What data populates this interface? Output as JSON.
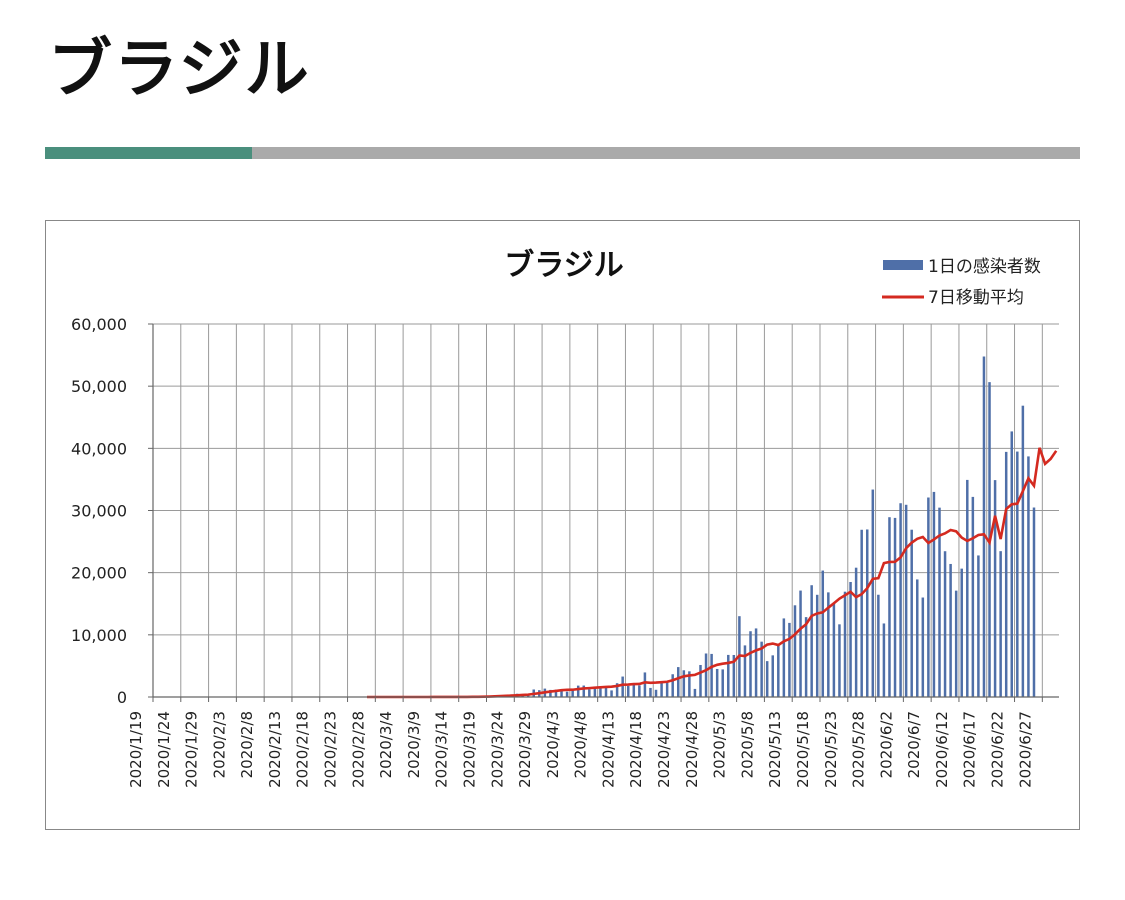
{
  "page": {
    "title": "ブラジル"
  },
  "colors": {
    "accent": "#4a8f7d",
    "rule": "#aaaaaa",
    "bar": "#4f6fa8",
    "line": "#d42a20"
  },
  "chart_data": {
    "type": "bar",
    "title": "ブラジル",
    "xlabel": "",
    "ylabel": "",
    "ylim": [
      0,
      60000
    ],
    "yticks": [
      0,
      10000,
      20000,
      30000,
      40000,
      50000,
      60000
    ],
    "ytick_labels": [
      "0",
      "10,000",
      "20,000",
      "30,000",
      "40,000",
      "50,000",
      "60,000"
    ],
    "x_start": "2020-01-19",
    "x_end": "2020-06-30",
    "xtick_labels": [
      "2020/1/19",
      "2020/1/24",
      "2020/1/29",
      "2020/2/3",
      "2020/2/8",
      "2020/2/13",
      "2020/2/18",
      "2020/2/23",
      "2020/2/28",
      "2020/3/4",
      "2020/3/9",
      "2020/3/14",
      "2020/3/19",
      "2020/3/24",
      "2020/3/29",
      "2020/4/3",
      "2020/4/8",
      "2020/4/13",
      "2020/4/18",
      "2020/4/23",
      "2020/4/28",
      "2020/5/3",
      "2020/5/8",
      "2020/5/13",
      "2020/5/18",
      "2020/5/23",
      "2020/5/28",
      "2020/6/2",
      "2020/6/7",
      "2020/6/12",
      "2020/6/17",
      "2020/6/22",
      "2020/6/27"
    ],
    "grid": true,
    "legend_position": "top-right",
    "series": [
      {
        "name": "1日の感染者数",
        "type": "bar",
        "start": "2020-02-26",
        "values": [
          1,
          0,
          0,
          0,
          1,
          0,
          0,
          0,
          0,
          0,
          6,
          4,
          6,
          13,
          5,
          2,
          29,
          27,
          36,
          77,
          84,
          130,
          193,
          297,
          291,
          337,
          411,
          527,
          480,
          476,
          1210,
          1100,
          1350,
          1140,
          1180,
          1220,
          860,
          1250,
          1830,
          1840,
          1220,
          1620,
          1700,
          1700,
          1060,
          2220,
          3290,
          1780,
          2010,
          1870,
          3950,
          1460,
          1160,
          2450,
          2500,
          3660,
          4810,
          4300,
          4130,
          1300,
          5150,
          7000,
          6930,
          4510,
          4440,
          6770,
          6760,
          13000,
          8300,
          10580,
          11030,
          8900,
          5770,
          6700,
          8400,
          12640,
          11920,
          14750,
          17120,
          12850,
          17980,
          16440,
          20340,
          16830,
          15150,
          11690,
          16940,
          18500,
          20800,
          26900,
          26950,
          33370,
          16450,
          11830,
          28920,
          28810,
          31170,
          30920,
          26910,
          18910,
          16000,
          32090,
          32990,
          30460,
          23450,
          21400,
          17110,
          20650,
          34920,
          32190,
          22770,
          54770,
          50650,
          34890,
          23460,
          39430,
          42720,
          39480,
          46860,
          38700,
          30480
        ],
        "label": "1日の感染者数"
      },
      {
        "name": "7日移動平均",
        "type": "line",
        "start": "2020-02-26",
        "values": [
          0,
          0,
          0,
          0,
          0,
          0,
          0,
          0,
          0,
          1,
          2,
          2,
          4,
          5,
          5,
          5,
          9,
          12,
          16,
          25,
          35,
          52,
          78,
          110,
          145,
          185,
          230,
          280,
          330,
          380,
          500,
          620,
          750,
          870,
          980,
          1100,
          1150,
          1170,
          1270,
          1370,
          1430,
          1500,
          1560,
          1620,
          1660,
          1780,
          1980,
          2000,
          2080,
          2100,
          2360,
          2280,
          2320,
          2380,
          2450,
          2700,
          3020,
          3330,
          3470,
          3560,
          3930,
          4310,
          4850,
          5180,
          5360,
          5480,
          5670,
          6680,
          6590,
          7100,
          7500,
          7800,
          8430,
          8600,
          8360,
          8960,
          9340,
          10080,
          10990,
          11710,
          13050,
          13440,
          13620,
          14370,
          15080,
          15820,
          16360,
          16930,
          16060,
          16550,
          17500,
          19000,
          19120,
          21530,
          21720,
          21750,
          22460,
          23940,
          24830,
          25450,
          25740,
          24780,
          25340,
          25980,
          26320,
          26870,
          26650,
          25640,
          25100,
          25530,
          26060,
          26170,
          24850,
          29150,
          25410,
          30240,
          31000,
          31100,
          33130,
          35180,
          33980,
          40080,
          37500,
          38300,
          39600
        ],
        "label": "7日移動平均"
      }
    ]
  }
}
